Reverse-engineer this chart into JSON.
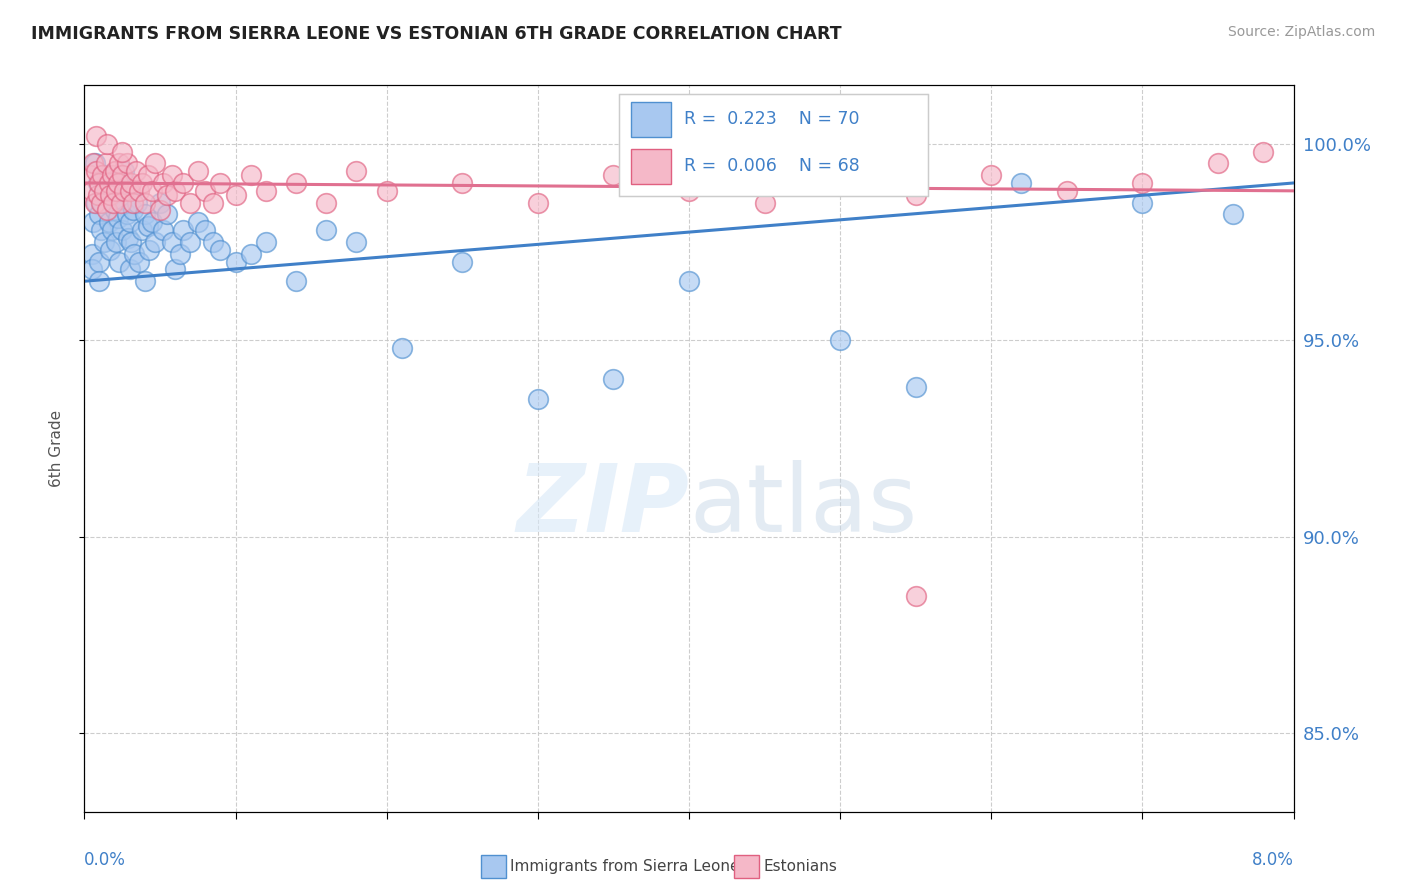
{
  "title": "IMMIGRANTS FROM SIERRA LEONE VS ESTONIAN 6TH GRADE CORRELATION CHART",
  "source": "Source: ZipAtlas.com",
  "ylabel": "6th Grade",
  "xlim": [
    0.0,
    8.0
  ],
  "ylim": [
    83.0,
    101.5
  ],
  "yticks": [
    85.0,
    90.0,
    95.0,
    100.0
  ],
  "legend_r1": "R =  0.223",
  "legend_n1": "N = 70",
  "legend_r2": "R =  0.006",
  "legend_n2": "N = 68",
  "blue_color": "#a8c8f0",
  "pink_color": "#f5b8c8",
  "blue_edge_color": "#5090d0",
  "pink_edge_color": "#e06080",
  "blue_line_color": "#4080c8",
  "pink_line_color": "#e07090",
  "grid_color": "#c8c8c8",
  "background_color": "#ffffff",
  "blue_scatter_x": [
    0.05,
    0.05,
    0.06,
    0.07,
    0.08,
    0.09,
    0.1,
    0.1,
    0.1,
    0.11,
    0.12,
    0.13,
    0.14,
    0.15,
    0.16,
    0.17,
    0.18,
    0.18,
    0.19,
    0.2,
    0.21,
    0.22,
    0.23,
    0.24,
    0.25,
    0.26,
    0.28,
    0.29,
    0.3,
    0.3,
    0.31,
    0.32,
    0.33,
    0.35,
    0.36,
    0.38,
    0.4,
    0.4,
    0.42,
    0.43,
    0.45,
    0.47,
    0.5,
    0.52,
    0.55,
    0.58,
    0.6,
    0.63,
    0.65,
    0.7,
    0.75,
    0.8,
    0.85,
    0.9,
    1.0,
    1.1,
    1.2,
    1.4,
    1.6,
    1.8,
    2.1,
    2.5,
    3.0,
    3.5,
    4.0,
    5.0,
    5.5,
    6.2,
    7.0,
    7.6
  ],
  "blue_scatter_y": [
    97.2,
    96.8,
    98.0,
    99.5,
    98.5,
    99.0,
    98.2,
    97.0,
    96.5,
    97.8,
    98.5,
    97.5,
    98.8,
    99.2,
    98.0,
    97.3,
    98.7,
    97.8,
    99.0,
    98.3,
    97.5,
    98.1,
    97.0,
    98.6,
    97.8,
    99.3,
    98.2,
    97.6,
    98.0,
    96.8,
    97.5,
    98.3,
    97.2,
    98.5,
    97.0,
    97.8,
    98.2,
    96.5,
    97.9,
    97.3,
    98.0,
    97.5,
    98.5,
    97.8,
    98.2,
    97.5,
    96.8,
    97.2,
    97.8,
    97.5,
    98.0,
    97.8,
    97.5,
    97.3,
    97.0,
    97.2,
    97.5,
    96.5,
    97.8,
    97.5,
    94.8,
    97.0,
    93.5,
    94.0,
    96.5,
    95.0,
    93.8,
    99.0,
    98.5,
    98.2
  ],
  "pink_scatter_x": [
    0.04,
    0.05,
    0.06,
    0.07,
    0.08,
    0.09,
    0.1,
    0.11,
    0.12,
    0.13,
    0.14,
    0.15,
    0.16,
    0.17,
    0.18,
    0.19,
    0.2,
    0.21,
    0.22,
    0.23,
    0.24,
    0.25,
    0.26,
    0.28,
    0.3,
    0.31,
    0.32,
    0.34,
    0.36,
    0.38,
    0.4,
    0.42,
    0.45,
    0.47,
    0.5,
    0.52,
    0.55,
    0.58,
    0.6,
    0.65,
    0.7,
    0.75,
    0.8,
    0.85,
    0.9,
    1.0,
    1.1,
    1.2,
    1.4,
    1.6,
    1.8,
    2.0,
    2.5,
    3.0,
    3.5,
    4.0,
    4.5,
    5.0,
    5.5,
    6.0,
    6.5,
    7.0,
    7.5,
    7.8,
    0.08,
    0.15,
    0.25,
    5.5
  ],
  "pink_scatter_y": [
    99.2,
    98.8,
    99.5,
    98.5,
    99.3,
    98.7,
    99.0,
    98.5,
    99.2,
    98.8,
    99.5,
    98.3,
    99.0,
    98.7,
    99.2,
    98.5,
    99.3,
    98.8,
    99.0,
    99.5,
    98.5,
    99.2,
    98.8,
    99.5,
    98.8,
    99.0,
    98.5,
    99.3,
    98.8,
    99.0,
    98.5,
    99.2,
    98.8,
    99.5,
    98.3,
    99.0,
    98.7,
    99.2,
    98.8,
    99.0,
    98.5,
    99.3,
    98.8,
    98.5,
    99.0,
    98.7,
    99.2,
    98.8,
    99.0,
    98.5,
    99.3,
    98.8,
    99.0,
    98.5,
    99.2,
    98.8,
    98.5,
    99.0,
    98.7,
    99.2,
    98.8,
    99.0,
    99.5,
    99.8,
    100.2,
    100.0,
    99.8,
    88.5
  ],
  "blue_trend_x": [
    0.0,
    8.0
  ],
  "blue_trend_y": [
    96.5,
    99.0
  ],
  "pink_trend_x": [
    0.0,
    8.0
  ],
  "pink_trend_y": [
    99.0,
    98.8
  ]
}
